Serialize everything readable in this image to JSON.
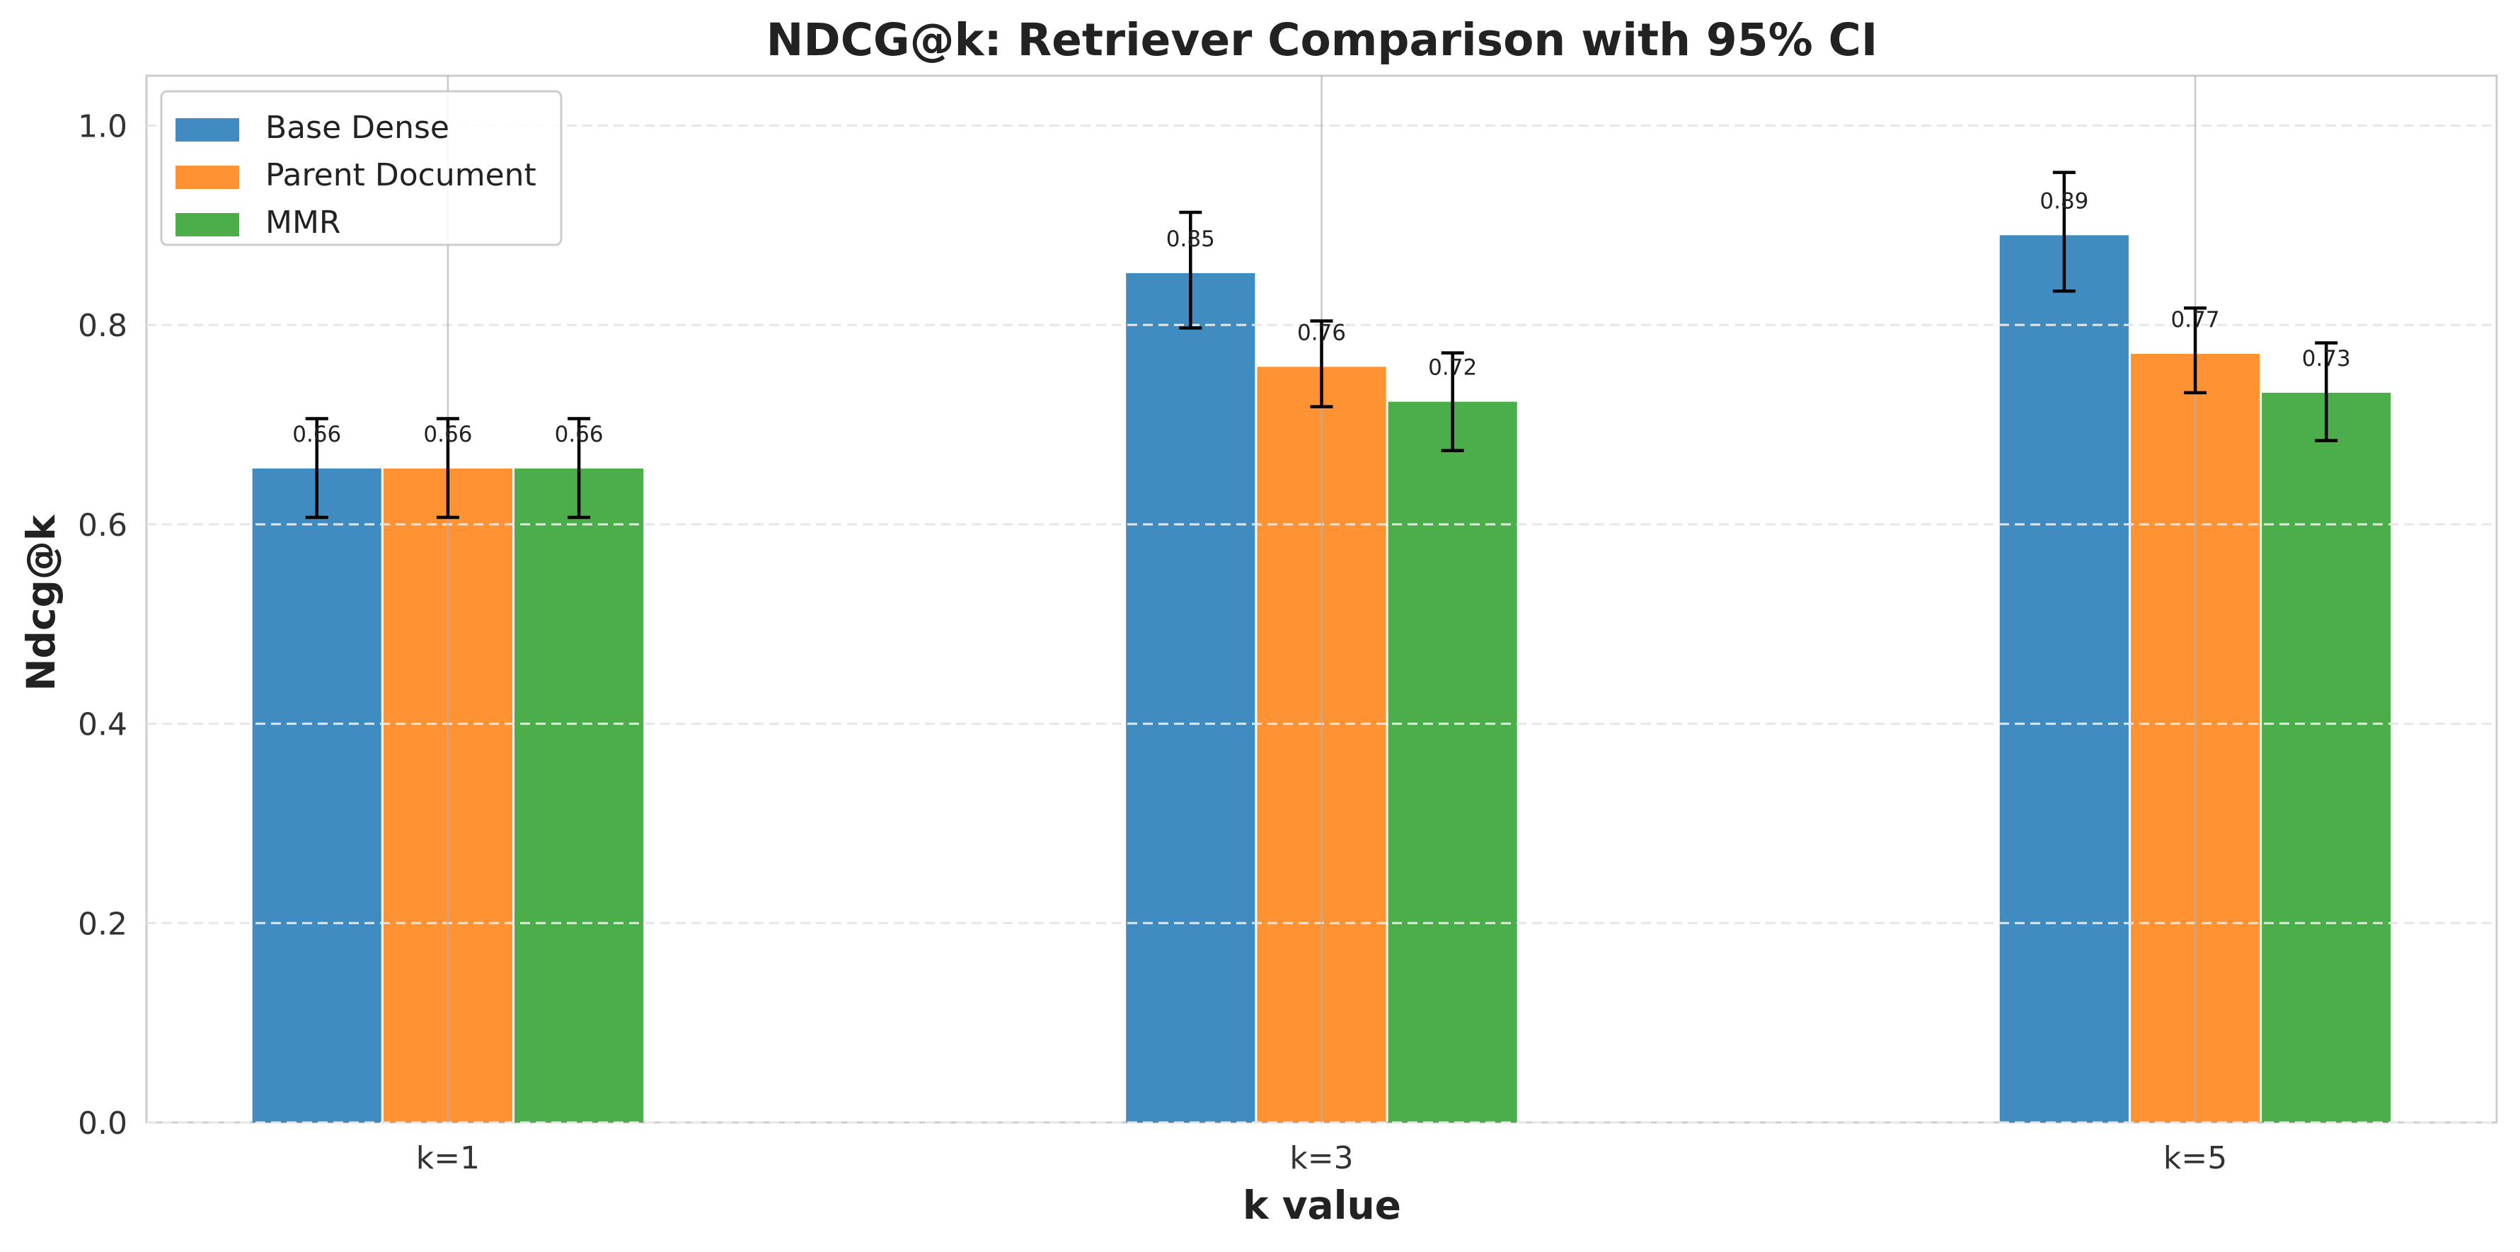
{
  "chart_data": {
    "type": "bar",
    "title": "NDCG@k: Retriever Comparison with 95% CI",
    "xlabel": "k value",
    "ylabel": "Ndcg@k",
    "categories": [
      "k=1",
      "k=3",
      "k=5"
    ],
    "series": [
      {
        "name": "Base Dense",
        "color": "#1f77b4",
        "values": [
          0.656,
          0.852,
          0.89
        ],
        "ci_low": [
          0.607,
          0.797,
          0.834
        ],
        "ci_high": [
          0.706,
          0.913,
          0.953
        ],
        "labels": [
          "0.66",
          "0.85",
          "0.89"
        ]
      },
      {
        "name": "Parent Document",
        "color": "#ff7f0e",
        "values": [
          0.656,
          0.758,
          0.771
        ],
        "ci_low": [
          0.607,
          0.718,
          0.732
        ],
        "ci_high": [
          0.706,
          0.804,
          0.817
        ],
        "labels": [
          "0.66",
          "0.76",
          "0.77"
        ]
      },
      {
        "name": "MMR",
        "color": "#2ca02c",
        "values": [
          0.656,
          0.723,
          0.732
        ],
        "ci_low": [
          0.607,
          0.674,
          0.684
        ],
        "ci_high": [
          0.706,
          0.772,
          0.782
        ],
        "labels": [
          "0.66",
          "0.72",
          "0.73"
        ]
      }
    ],
    "ylim": [
      0,
      1.05
    ],
    "yticks": [
      0.0,
      0.2,
      0.4,
      0.6,
      0.8,
      1.0
    ],
    "ytick_labels": [
      "0.0",
      "0.2",
      "0.4",
      "0.6",
      "0.8",
      "1.0"
    ],
    "grid": "dashed horizontal y-grid, solid vertical x-grid",
    "legend_position": "top-left"
  }
}
